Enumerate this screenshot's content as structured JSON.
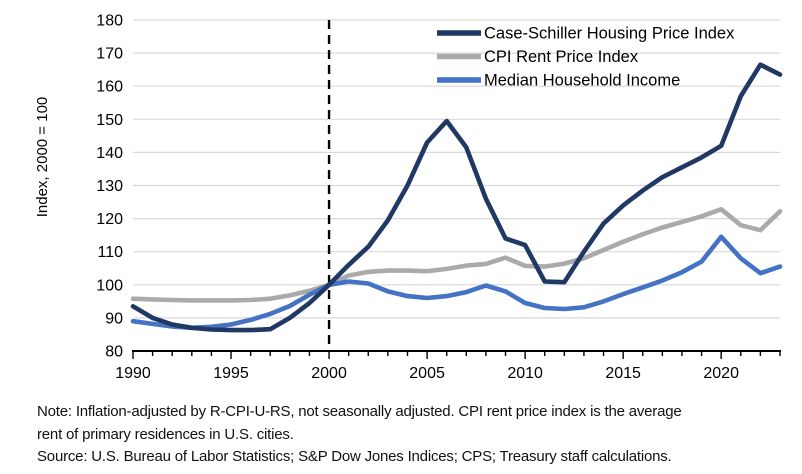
{
  "chart_data": {
    "type": "line",
    "title": "",
    "ylabel": "Index, 2000 = 100",
    "x_start": 1990,
    "x_end": 2023,
    "xticks": [
      1990,
      1995,
      2000,
      2005,
      2010,
      2015,
      2020
    ],
    "ylim": [
      80,
      180
    ],
    "yticks": [
      80,
      90,
      100,
      110,
      120,
      130,
      140,
      150,
      160,
      170,
      180
    ],
    "grid": true,
    "grid_color": "#D9D9D9",
    "axis_color": "#000000",
    "reference_line": {
      "x": 2000,
      "style": "dashed",
      "color": "#000000"
    },
    "legend_position": "top-right-inside",
    "series": [
      {
        "name": "Case-Schiller Housing Price Index",
        "color": "#1F3864",
        "values": [
          93.5,
          90,
          88,
          87,
          86.5,
          86.3,
          86.3,
          86.6,
          90,
          94.5,
          100,
          106,
          111.5,
          119.5,
          130,
          143,
          149.5,
          141.5,
          126,
          114,
          112,
          101,
          100.8,
          110,
          118.5,
          124,
          128.5,
          132.5,
          135.5,
          138.5,
          142,
          157,
          166.5,
          163.5
        ]
      },
      {
        "name": "CPI Rent Price Index",
        "color": "#AAAAAA",
        "values": [
          95.8,
          95.6,
          95.4,
          95.3,
          95.3,
          95.3,
          95.4,
          95.8,
          96.8,
          98.2,
          100,
          102.8,
          103.9,
          104.3,
          104.3,
          104.1,
          104.8,
          105.8,
          106.3,
          108.2,
          105.7,
          105.5,
          106.4,
          108,
          110.5,
          113,
          115.3,
          117.3,
          119,
          120.7,
          122.8,
          118,
          116.5,
          122.2
        ]
      },
      {
        "name": "Median Household Income",
        "color": "#4472C4",
        "values": [
          89,
          88.2,
          87.4,
          87,
          87.3,
          88,
          89.4,
          91.2,
          93.6,
          97,
          100,
          101,
          100.4,
          98,
          96.6,
          96,
          96.6,
          97.8,
          99.8,
          98,
          94.5,
          93,
          92.7,
          93.2,
          95,
          97.2,
          99.2,
          101.3,
          103.8,
          107,
          114.5,
          108,
          103.5,
          105.5
        ]
      }
    ]
  },
  "notes": {
    "note_line1": "Note: Inflation-adjusted by R-CPI-U-RS, not seasonally adjusted. CPI rent price index is the average",
    "note_line2": "rent of primary residences in U.S. cities.",
    "source": "Source: U.S. Bureau of Labor Statistics; S&P Dow Jones Indices; CPS; Treasury staff calculations."
  }
}
